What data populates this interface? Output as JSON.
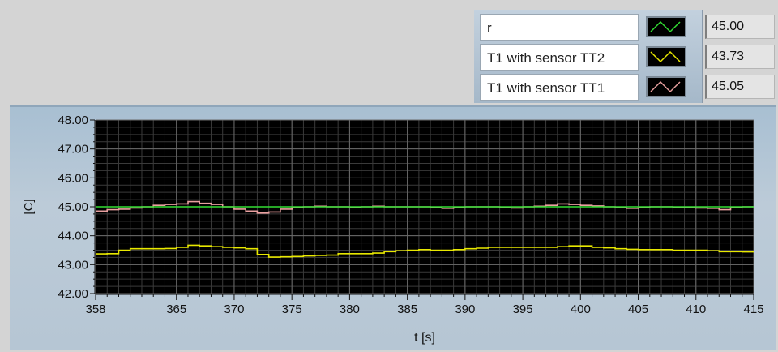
{
  "legend": {
    "items": [
      {
        "name": "r",
        "color": "#33dd33",
        "icon": "green-line-icon"
      },
      {
        "name": "T1 with sensor TT2",
        "color": "#e8e800",
        "icon": "yellow-line-icon"
      },
      {
        "name": "T1 with sensor TT1",
        "color": "#e9a0a0",
        "icon": "pink-line-icon"
      }
    ]
  },
  "readouts": [
    "45.00",
    "43.73",
    "45.05"
  ],
  "chart_data": {
    "type": "line",
    "xlabel": "t [s]",
    "ylabel": "[C]",
    "xlim": [
      358,
      415
    ],
    "ylim": [
      42,
      48
    ],
    "grid": true,
    "background": "#000000",
    "x_ticks": [
      358,
      365,
      370,
      375,
      380,
      385,
      390,
      395,
      400,
      405,
      410,
      415
    ],
    "x_tick_labels": [
      "358",
      "365",
      "370",
      "375",
      "380",
      "385",
      "390",
      "395",
      "400",
      "405",
      "410",
      "415"
    ],
    "y_ticks": [
      42,
      43,
      44,
      45,
      46,
      47,
      48
    ],
    "y_tick_labels": [
      "42.00",
      "43.00",
      "44.00",
      "45.00",
      "46.00",
      "47.00",
      "48.00"
    ],
    "series": [
      {
        "name": "r",
        "color": "#33dd33",
        "x": [
          358,
          415
        ],
        "y": [
          45.0,
          45.0
        ]
      },
      {
        "name": "T1 with sensor TT2",
        "color": "#e8e800",
        "x": [
          358,
          359,
          360,
          361,
          362,
          363,
          364,
          365,
          366,
          367,
          368,
          369,
          370,
          371,
          372,
          373,
          374,
          375,
          376,
          377,
          378,
          379,
          380,
          381,
          382,
          383,
          384,
          385,
          386,
          387,
          388,
          389,
          390,
          391,
          392,
          393,
          394,
          395,
          396,
          397,
          398,
          399,
          400,
          401,
          402,
          403,
          404,
          405,
          406,
          407,
          408,
          409,
          410,
          411,
          412,
          413,
          414,
          415
        ],
        "y": [
          43.37,
          43.38,
          43.5,
          43.55,
          43.55,
          43.55,
          43.56,
          43.6,
          43.67,
          43.65,
          43.62,
          43.6,
          43.58,
          43.55,
          43.35,
          43.26,
          43.27,
          43.28,
          43.3,
          43.32,
          43.33,
          43.38,
          43.38,
          43.38,
          43.4,
          43.45,
          43.48,
          43.5,
          43.52,
          43.5,
          43.5,
          43.52,
          43.55,
          43.57,
          43.6,
          43.6,
          43.6,
          43.6,
          43.6,
          43.6,
          43.62,
          43.65,
          43.65,
          43.6,
          43.58,
          43.55,
          43.53,
          43.52,
          43.52,
          43.52,
          43.5,
          43.5,
          43.5,
          43.48,
          43.45,
          43.45,
          43.44,
          43.42
        ]
      },
      {
        "name": "T1 with sensor TT1",
        "color": "#e9a0a0",
        "x": [
          358,
          359,
          360,
          361,
          362,
          363,
          364,
          365,
          366,
          367,
          368,
          369,
          370,
          371,
          372,
          373,
          374,
          375,
          376,
          377,
          378,
          379,
          380,
          381,
          382,
          383,
          384,
          385,
          386,
          387,
          388,
          389,
          390,
          391,
          392,
          393,
          394,
          395,
          396,
          397,
          398,
          399,
          400,
          401,
          402,
          403,
          404,
          405,
          406,
          407,
          408,
          409,
          410,
          411,
          412,
          413,
          414,
          415
        ],
        "y": [
          44.85,
          44.9,
          44.92,
          44.96,
          45.0,
          45.05,
          45.08,
          45.1,
          45.18,
          45.12,
          45.08,
          45.0,
          44.92,
          44.85,
          44.78,
          44.82,
          44.92,
          44.98,
          45.0,
          45.02,
          45.0,
          45.0,
          44.98,
          45.0,
          45.02,
          45.0,
          45.0,
          45.0,
          45.0,
          44.98,
          44.95,
          44.97,
          45.0,
          45.0,
          45.0,
          44.97,
          44.96,
          45.0,
          45.02,
          45.05,
          45.1,
          45.08,
          45.05,
          45.03,
          45.0,
          44.98,
          44.95,
          44.97,
          45.0,
          45.0,
          44.98,
          44.97,
          44.96,
          44.95,
          44.9,
          44.98,
          45.0,
          45.0
        ]
      }
    ]
  }
}
